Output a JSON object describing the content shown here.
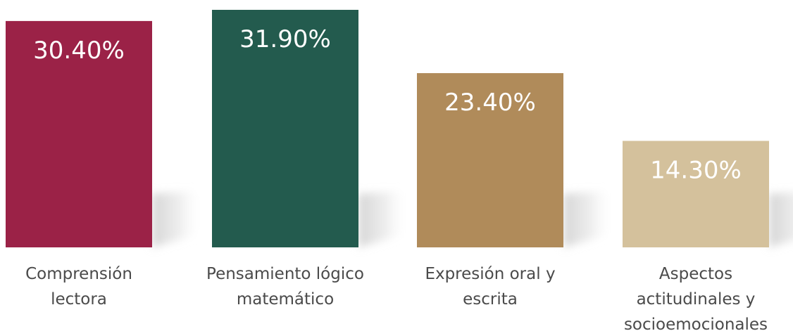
{
  "chart_data": {
    "type": "bar",
    "categories": [
      "Comprensión lectora",
      "Pensamiento lógico matemático",
      "Expresión oral y escrita",
      "Aspectos actitudinales y socioemocionales"
    ],
    "category_lines": [
      [
        "Comprensión",
        "lectora"
      ],
      [
        "Pensamiento lógico",
        "matemático"
      ],
      [
        "Expresión oral y",
        "escrita"
      ],
      [
        "Aspectos",
        "actitudinales y",
        "socioemocionales"
      ]
    ],
    "values": [
      30.4,
      31.9,
      23.4,
      14.3
    ],
    "data_labels": [
      "30.40%",
      "31.90%",
      "23.40%",
      "14.30%"
    ],
    "colors": [
      "#9b2247",
      "#235b4e",
      "#b08b5a",
      "#d4c19c"
    ],
    "unit": "%",
    "ylim": [
      0,
      31.9
    ],
    "grid": false,
    "title": "",
    "xlabel": "",
    "ylabel": ""
  }
}
